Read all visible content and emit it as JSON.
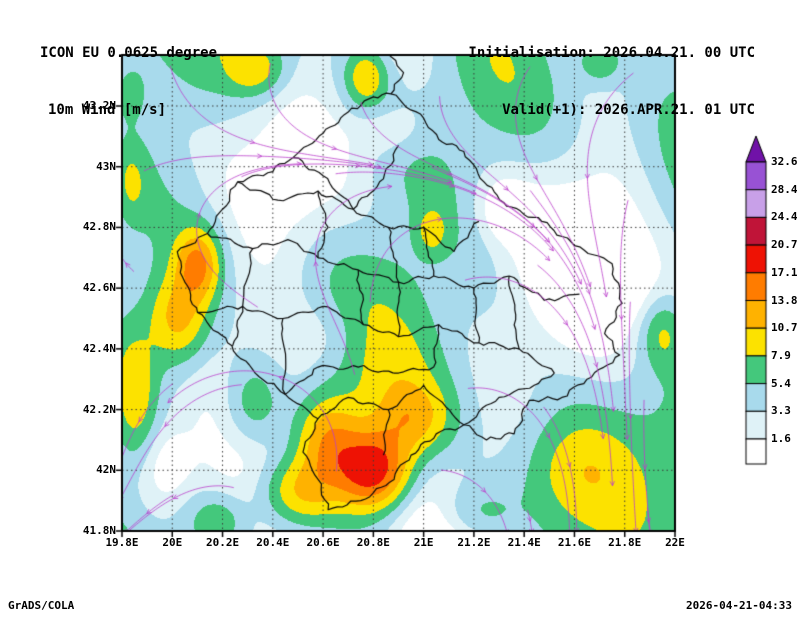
{
  "header": {
    "model_line": "ICON EU 0.0625 degree",
    "field_line": "10m Wind [m/s]",
    "init_line": "Initialisation: 2026.04.21. 00 UTC",
    "valid_line": "Valid(+1): 2026.APR.21. 01 UTC"
  },
  "axes": {
    "y_ticks": [
      "43.2N",
      "43N",
      "42.8N",
      "42.6N",
      "42.4N",
      "42.2N",
      "42N",
      "41.8N"
    ],
    "y_values": [
      43.2,
      43.0,
      42.8,
      42.6,
      42.4,
      42.2,
      42.0,
      41.8
    ],
    "x_ticks": [
      "19.8E",
      "20E",
      "20.2E",
      "20.4E",
      "20.6E",
      "20.8E",
      "21E",
      "21.2E",
      "21.4E",
      "21.6E",
      "21.8E",
      "22E"
    ],
    "x_values": [
      19.8,
      20.0,
      20.2,
      20.4,
      20.6,
      20.8,
      21.0,
      21.2,
      21.4,
      21.6,
      21.8,
      22.0
    ]
  },
  "legend": {
    "values": [
      "32.6",
      "28.4",
      "24.4",
      "20.7",
      "17.1",
      "13.8",
      "10.7",
      "7.9",
      "5.4",
      "3.3",
      "1.6"
    ]
  },
  "chart_data": {
    "type": "heatmap",
    "title": "10m Wind [m/s]",
    "model": "ICON EU 0.0625 degree",
    "init_time": "2026.04.21. 00 UTC",
    "valid_time": "2026.APR.21. 01 UTC",
    "units": "m/s",
    "lon_range": [
      19.8,
      22.0
    ],
    "lat_range": [
      41.8,
      43.37
    ],
    "grid_interval_deg": 0.2,
    "contour_levels": [
      1.6,
      3.3,
      5.4,
      7.9,
      10.7,
      13.8,
      17.1,
      20.7,
      24.4,
      28.4,
      32.6
    ],
    "palette": [
      "#ffffff",
      "#dff2f7",
      "#a8daec",
      "#44c87c",
      "#fce200",
      "#ffb200",
      "#ff7c00",
      "#ee1204",
      "#c01438",
      "#c8a0e8",
      "#9852d4",
      "#7012a8"
    ],
    "overlay_colors": {
      "borders": "#0a0a0a",
      "streamlines": "#bb3fcc",
      "grid": "#3a3a3a"
    }
  },
  "footer": {
    "left": "GrADS/COLA",
    "right": "2026-04-21-04:33"
  }
}
